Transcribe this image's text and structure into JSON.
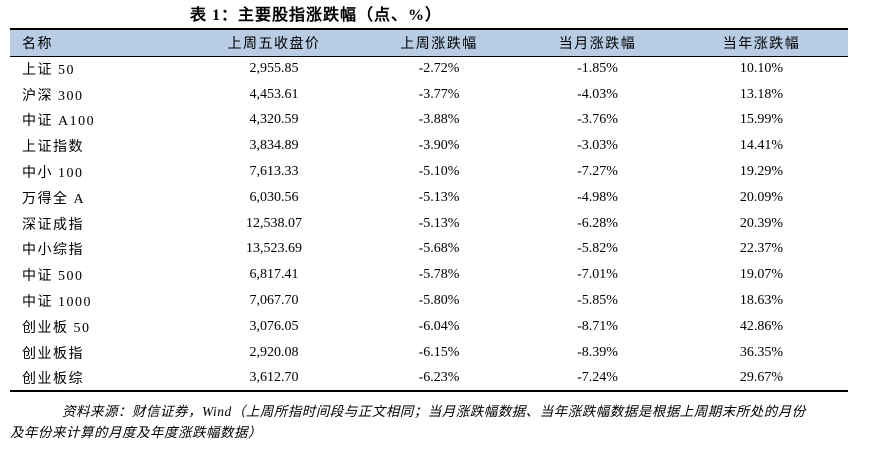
{
  "title": "表 1：主要股指涨跌幅（点、%）",
  "table": {
    "headers": [
      "名称",
      "上周五收盘价",
      "上周涨跌幅",
      "当月涨跌幅",
      "当年涨跌幅"
    ],
    "rows": [
      {
        "name": "上证 50",
        "close": "2,955.85",
        "week": "-2.72%",
        "month": "-1.85%",
        "year": "10.10%"
      },
      {
        "name": "沪深 300",
        "close": "4,453.61",
        "week": "-3.77%",
        "month": "-4.03%",
        "year": "13.18%"
      },
      {
        "name": "中证 A100",
        "close": "4,320.59",
        "week": "-3.88%",
        "month": "-3.76%",
        "year": "15.99%"
      },
      {
        "name": "上证指数",
        "close": "3,834.89",
        "week": "-3.90%",
        "month": "-3.03%",
        "year": "14.41%"
      },
      {
        "name": "中小 100",
        "close": "7,613.33",
        "week": "-5.10%",
        "month": "-7.27%",
        "year": "19.29%"
      },
      {
        "name": "万得全 A",
        "close": "6,030.56",
        "week": "-5.13%",
        "month": "-4.98%",
        "year": "20.09%"
      },
      {
        "name": "深证成指",
        "close": "12,538.07",
        "week": "-5.13%",
        "month": "-6.28%",
        "year": "20.39%"
      },
      {
        "name": "中小综指",
        "close": "13,523.69",
        "week": "-5.68%",
        "month": "-5.82%",
        "year": "22.37%"
      },
      {
        "name": "中证 500",
        "close": "6,817.41",
        "week": "-5.78%",
        "month": "-7.01%",
        "year": "19.07%"
      },
      {
        "name": "中证 1000",
        "close": "7,067.70",
        "week": "-5.80%",
        "month": "-5.85%",
        "year": "18.63%"
      },
      {
        "name": "创业板 50",
        "close": "3,076.05",
        "week": "-6.04%",
        "month": "-8.71%",
        "year": "42.86%"
      },
      {
        "name": "创业板指",
        "close": "2,920.08",
        "week": "-6.15%",
        "month": "-8.39%",
        "year": "36.35%"
      },
      {
        "name": "创业板综",
        "close": "3,612.70",
        "week": "-6.23%",
        "month": "-7.24%",
        "year": "29.67%"
      }
    ]
  },
  "footer": {
    "line1": "资料来源：财信证券，Wind（上周所指时间段与正文相同；当月涨跌幅数据、当年涨跌幅数据是根据上周期末所处的月份",
    "line2": "及年份来计算的月度及年度涨跌幅数据）"
  },
  "colors": {
    "header_background": "#b8cce4",
    "border": "#000000",
    "text": "#000000"
  }
}
